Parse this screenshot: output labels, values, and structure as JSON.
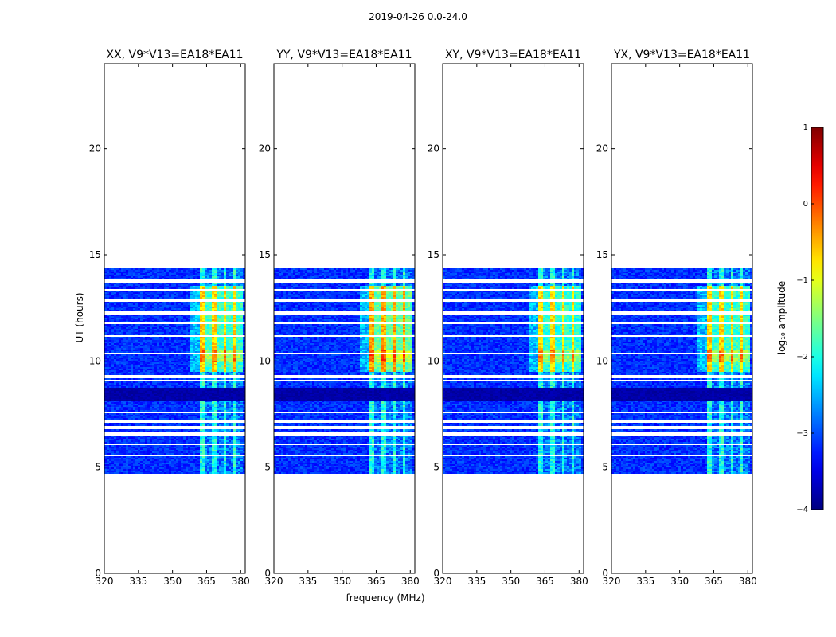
{
  "chart_data": {
    "type": "heatmap",
    "suptitle": "2019-04-26 0.0-24.0",
    "xlabel": "frequency (MHz)",
    "ylabel": "UT (hours)",
    "xlim": [
      320,
      382
    ],
    "ylim": [
      0,
      24
    ],
    "xticks": [
      "320",
      "335",
      "350",
      "365",
      "380"
    ],
    "xtick_values": [
      320,
      335,
      350,
      365,
      380
    ],
    "yticks": [
      "0",
      "5",
      "10",
      "15",
      "20"
    ],
    "ytick_values": [
      0,
      5,
      10,
      15,
      20
    ],
    "panels": [
      {
        "title": "XX, V9*V13=EA18*EA11",
        "rfi_strength": 0.72
      },
      {
        "title": "YY, V9*V13=EA18*EA11",
        "rfi_strength": 0.95
      },
      {
        "title": "XY, V9*V13=EA18*EA11",
        "rfi_strength": 0.62
      },
      {
        "title": "YX, V9*V13=EA18*EA11",
        "rfi_strength": 0.68
      }
    ],
    "data_time_range_hours": [
      4.7,
      14.35
    ],
    "rfi_band_mhz": [
      361,
      380
    ],
    "rfi_channel_centers_mhz": [
      365.5,
      370,
      374.5,
      379
    ],
    "flagged_rows_hours": [
      5.6,
      6.1,
      6.6,
      6.9,
      7.2,
      7.6,
      9.3,
      9.1,
      10.4,
      11.2,
      11.8,
      12.3,
      12.9,
      13.4,
      13.8
    ],
    "colorbar": {
      "label": "log₁₀ amplitude",
      "min": -4,
      "max": 1,
      "ticks": [
        "1",
        "0",
        "−1",
        "−2",
        "−3",
        "−4"
      ],
      "tick_values": [
        1,
        0,
        -1,
        -2,
        -3,
        -4
      ],
      "colormap": "jet"
    }
  }
}
